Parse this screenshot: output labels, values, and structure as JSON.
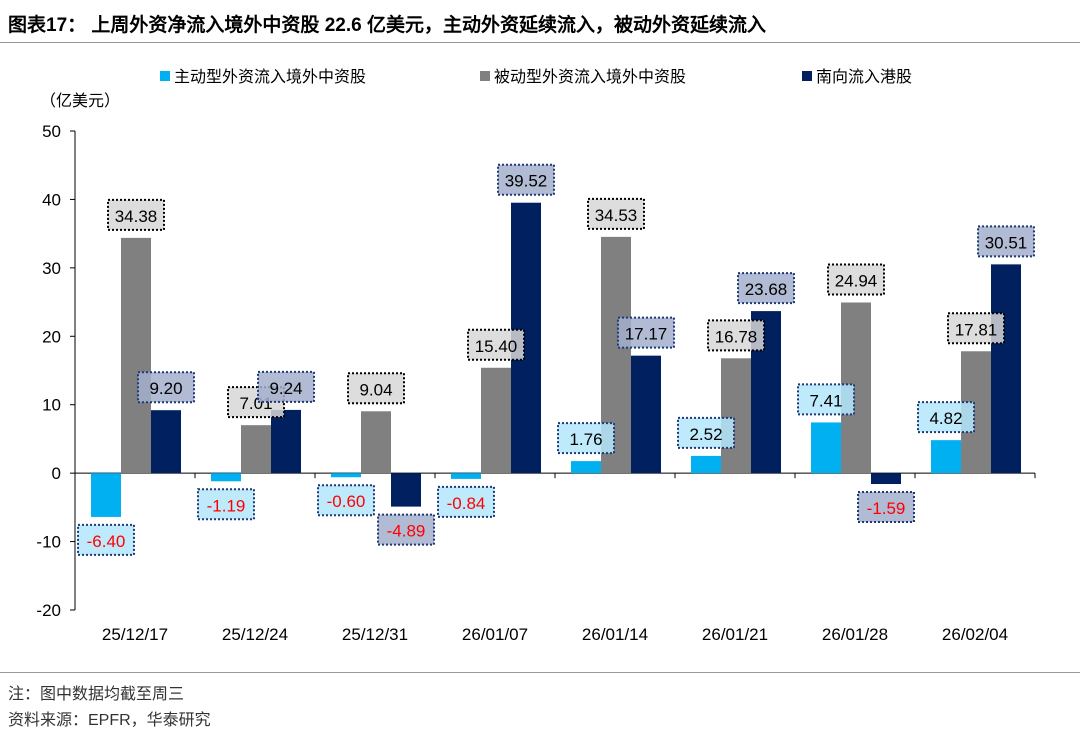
{
  "title": "图表17：  上周外资净流入境外中资股 22.6 亿美元，主动外资延续流入，被动外资延续流入",
  "notes": [
    "注：图中数据均截至周三",
    "资料来源：EPFR，华泰研究"
  ],
  "chart_data": {
    "type": "bar",
    "ylabel": "（亿美元）",
    "ylim": [
      -20,
      50
    ],
    "yticks": [
      -20,
      -10,
      0,
      10,
      20,
      30,
      40,
      50
    ],
    "grid": false,
    "legend": "top",
    "categories": [
      "25/12/17",
      "25/12/24",
      "25/12/31",
      "26/01/07",
      "26/01/14",
      "26/01/21",
      "26/01/28",
      "26/02/04"
    ],
    "series": [
      {
        "name": "主动型外资流入境外中资股",
        "color": "#00B0F0",
        "values": [
          -6.4,
          -1.19,
          -0.6,
          -0.84,
          1.76,
          2.52,
          7.41,
          4.82
        ]
      },
      {
        "name": "被动型外资流入境外中资股",
        "color": "#808080",
        "values": [
          34.38,
          7.01,
          9.04,
          15.4,
          34.53,
          16.78,
          24.94,
          17.81
        ]
      },
      {
        "name": "南向流入港股",
        "color": "#002060",
        "values": [
          9.2,
          9.24,
          -4.89,
          39.52,
          17.17,
          23.68,
          -1.59,
          30.51
        ]
      }
    ],
    "negative_label_color": "#FF0000"
  }
}
